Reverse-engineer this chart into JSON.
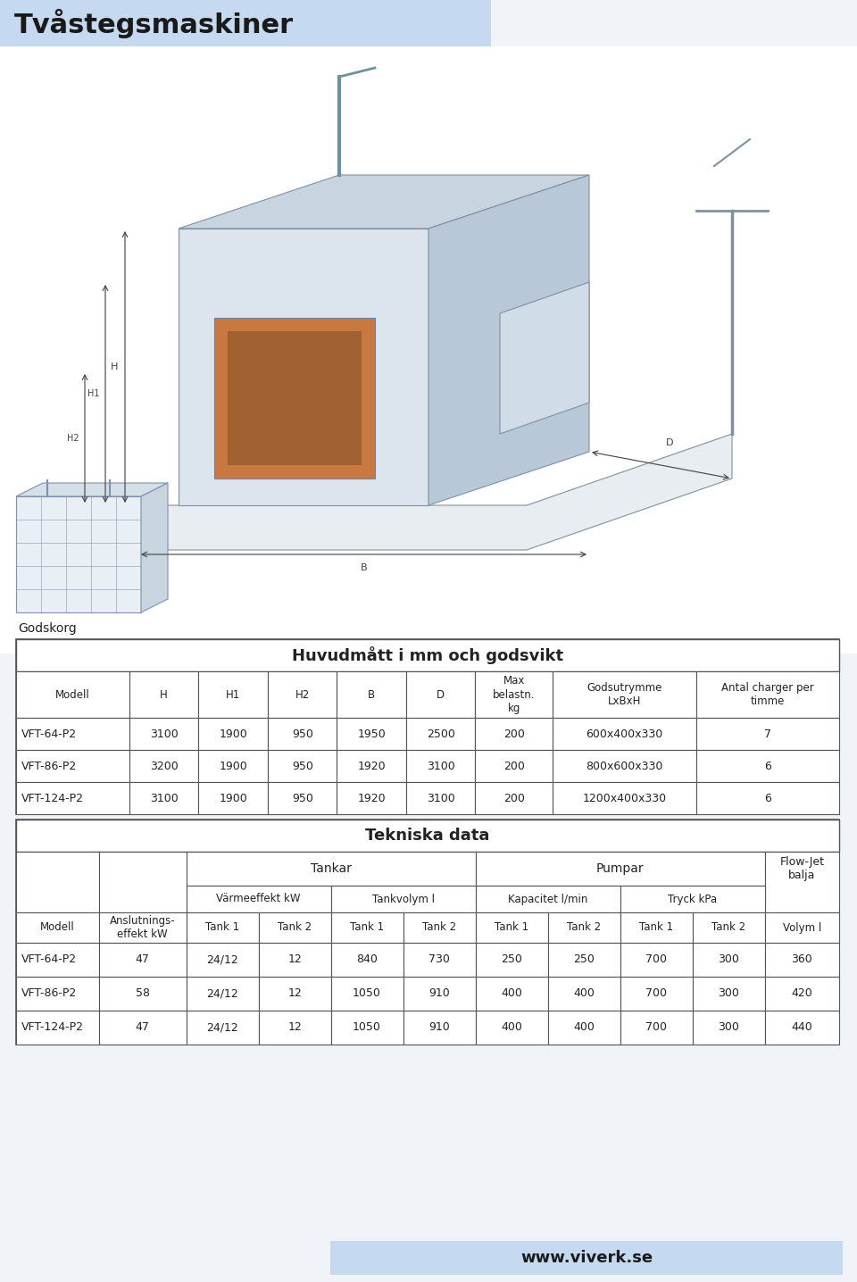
{
  "title": "Tvåstegsmaskiner",
  "title_bg": "#c5d9f1",
  "page_bg": "#f0f4f8",
  "footer_bg": "#c5d9f1",
  "footer_text": "www.viverk.se",
  "table1_title": "Huvudmått i mm och godsvikt",
  "table1_headers": [
    "Modell",
    "H",
    "H1",
    "H2",
    "B",
    "D",
    "Max\nbelastn.\nkg",
    "Godsutrymme\nLxBxH",
    "Antal charger per\ntimme"
  ],
  "table1_rows": [
    [
      "VFT-64-P2",
      "3100",
      "1900",
      "950",
      "1950",
      "2500",
      "200",
      "600x400x330",
      "7"
    ],
    [
      "VFT-86-P2",
      "3200",
      "1900",
      "950",
      "1920",
      "3100",
      "200",
      "800x600x330",
      "6"
    ],
    [
      "VFT-124-P2",
      "3100",
      "1900",
      "950",
      "1920",
      "3100",
      "200",
      "1200x400x330",
      "6"
    ]
  ],
  "table2_title": "Tekniska data",
  "table2_group1": "Tankar",
  "table2_group2": "Pumpar",
  "table2_group3": "Flow-Jet\nbalja",
  "table2_sub1": "Värmeeffekt kW",
  "table2_sub2": "Tankvolym l",
  "table2_sub3": "Kapacitet l/min",
  "table2_sub4": "Tryck kPa",
  "table2_rows": [
    [
      "VFT-64-P2",
      "47",
      "24/12",
      "12",
      "840",
      "730",
      "250",
      "250",
      "700",
      "300",
      "360"
    ],
    [
      "VFT-86-P2",
      "58",
      "24/12",
      "12",
      "1050",
      "910",
      "400",
      "400",
      "700",
      "300",
      "420"
    ],
    [
      "VFT-124-P2",
      "47",
      "24/12",
      "12",
      "1050",
      "910",
      "400",
      "400",
      "700",
      "300",
      "440"
    ]
  ],
  "godskorg_label": "Godskorg",
  "table_border": "#555555",
  "text_color": "#222222"
}
